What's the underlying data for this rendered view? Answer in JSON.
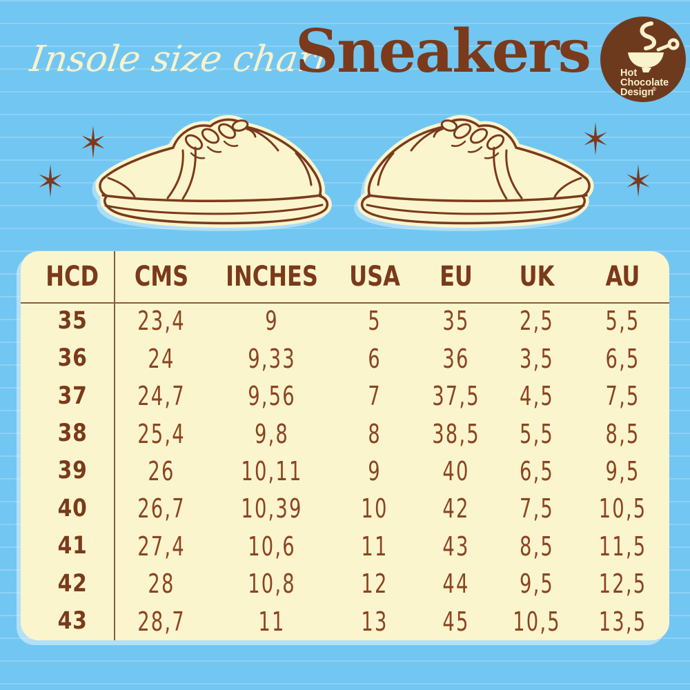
{
  "header": {
    "script_title": "Insole size chart",
    "product_title": "Sneakers"
  },
  "logo": {
    "line1": "Hot",
    "line2": "Chocolate",
    "line3": "Design",
    "registered_mark": "®"
  },
  "colors": {
    "background_blue": "#72C6F2",
    "cream": "#FBF5CD",
    "brown_dark": "#7A3A1B",
    "brown_data": "#8B4423"
  },
  "chart_data": {
    "type": "table",
    "title": "Insole size chart — Sneakers",
    "columns": [
      "HCD",
      "CMS",
      "INCHES",
      "USA",
      "EU",
      "UK",
      "AU"
    ],
    "rows": [
      [
        "35",
        "23,4",
        "9",
        "5",
        "35",
        "2,5",
        "5,5"
      ],
      [
        "36",
        "24",
        "9,33",
        "6",
        "36",
        "3,5",
        "6,5"
      ],
      [
        "37",
        "24,7",
        "9,56",
        "7",
        "37,5",
        "4,5",
        "7,5"
      ],
      [
        "38",
        "25,4",
        "9,8",
        "8",
        "38,5",
        "5,5",
        "8,5"
      ],
      [
        "39",
        "26",
        "10,11",
        "9",
        "40",
        "6,5",
        "9,5"
      ],
      [
        "40",
        "26,7",
        "10,39",
        "10",
        "42",
        "7,5",
        "10,5"
      ],
      [
        "41",
        "27,4",
        "10,6",
        "11",
        "43",
        "8,5",
        "11,5"
      ],
      [
        "42",
        "28",
        "10,8",
        "12",
        "44",
        "9,5",
        "12,5"
      ],
      [
        "43",
        "28,7",
        "11",
        "13",
        "45",
        "10,5",
        "13,5"
      ]
    ]
  }
}
